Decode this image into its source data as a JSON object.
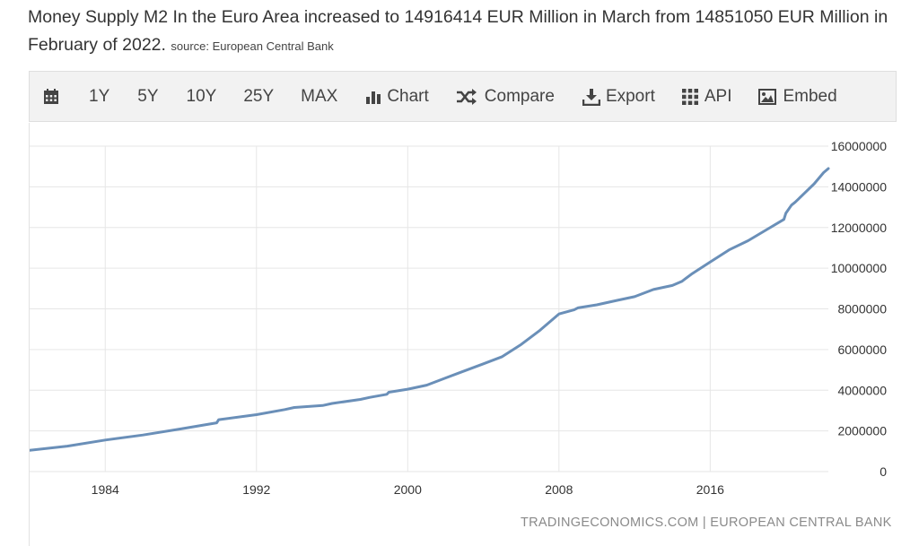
{
  "headline": {
    "main": "Money Supply M2 In the Euro Area increased to 14916414 EUR Million in March from 14851050 EUR Million in February of 2022.",
    "source": "source: European Central Bank"
  },
  "toolbar": {
    "calendar_icon": "calendar-icon",
    "range_1y": "1Y",
    "range_5y": "5Y",
    "range_10y": "10Y",
    "range_25y": "25Y",
    "range_max": "MAX",
    "chart_label": "Chart",
    "compare_label": "Compare",
    "export_label": "Export",
    "api_label": "API",
    "embed_label": "Embed"
  },
  "footer": "TRADINGECONOMICS.COM | EUROPEAN CENTRAL BANK",
  "colors": {
    "line": "#6a8fb8",
    "grid": "#e6e6e6",
    "toolbar_bg": "#f2f2f2"
  },
  "chart_data": {
    "type": "line",
    "title": "",
    "xlabel": "",
    "ylabel": "",
    "xlim": [
      1980,
      2022.25
    ],
    "ylim": [
      0,
      16000000
    ],
    "x_ticks": [
      1984,
      1992,
      2000,
      2008,
      2016
    ],
    "y_ticks": [
      0,
      2000000,
      4000000,
      6000000,
      8000000,
      10000000,
      12000000,
      14000000,
      16000000
    ],
    "grid": true,
    "y_axis_position": "right",
    "series": [
      {
        "name": "",
        "x": [
          1980.0,
          1982.0,
          1984.0,
          1986.0,
          1988.0,
          1989.9,
          1990.0,
          1992.0,
          1993.5,
          1994.0,
          1995.5,
          1996.0,
          1997.5,
          1998.0,
          1998.9,
          1999.0,
          2000.0,
          2001.0,
          2002.0,
          2003.0,
          2004.0,
          2005.0,
          2006.0,
          2007.0,
          2008.0,
          2008.8,
          2009.0,
          2010.0,
          2011.0,
          2012.0,
          2013.0,
          2014.0,
          2014.5,
          2015.0,
          2016.0,
          2017.0,
          2018.0,
          2019.0,
          2019.9,
          2020.0,
          2020.3,
          2020.5,
          2021.0,
          2021.5,
          2022.0,
          2022.25
        ],
        "values": [
          1050000,
          1250000,
          1550000,
          1800000,
          2100000,
          2400000,
          2550000,
          2800000,
          3050000,
          3150000,
          3250000,
          3350000,
          3550000,
          3650000,
          3800000,
          3900000,
          4050000,
          4250000,
          4600000,
          4950000,
          5300000,
          5650000,
          6250000,
          6950000,
          7750000,
          7950000,
          8050000,
          8200000,
          8400000,
          8600000,
          8950000,
          9150000,
          9350000,
          9700000,
          10300000,
          10900000,
          11350000,
          11900000,
          12400000,
          12700000,
          13100000,
          13250000,
          13700000,
          14150000,
          14700000,
          14900000
        ]
      }
    ]
  }
}
